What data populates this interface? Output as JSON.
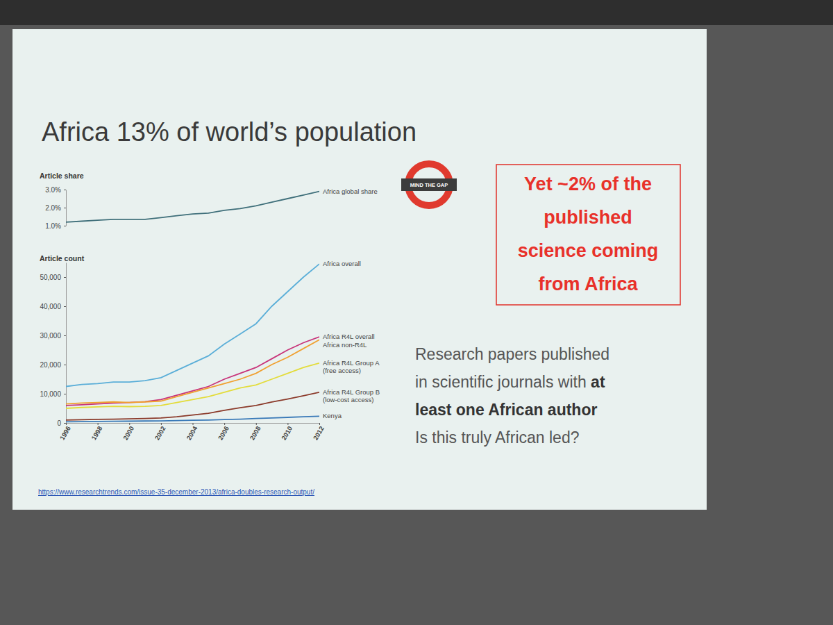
{
  "slide": {
    "title": "Africa 13% of world’s population",
    "logo_text": "MIND THE GAP",
    "callout": [
      "Yet ~2% of the",
      "published",
      "science coming",
      "from Africa"
    ],
    "note": [
      [
        {
          "text": "Research papers published"
        }
      ],
      [
        {
          "text": "in scientific journals with "
        },
        {
          "text": "at",
          "bold": true
        }
      ],
      [
        {
          "text": "least one African author",
          "bold": true
        }
      ],
      [
        {
          "text": "Is this truly African led?"
        }
      ]
    ],
    "source": "https://www.researchtrends.com/issue-35-december-2013/africa-doubles-research-output/"
  },
  "chart_data": [
    {
      "type": "line",
      "ylabel": "Article share",
      "x": [
        1996,
        1997,
        1998,
        1999,
        2000,
        2001,
        2002,
        2003,
        2004,
        2005,
        2006,
        2007,
        2008,
        2009,
        2010,
        2011,
        2012
      ],
      "xlim": [
        1996,
        2012
      ],
      "ylim": [
        1.0,
        3.0
      ],
      "yticks": [
        {
          "value": 1,
          "label": "1.0%"
        },
        {
          "value": 2,
          "label": "2.0%"
        },
        {
          "value": 3,
          "label": "3.0%"
        }
      ],
      "tick_labels": "y",
      "grid": false,
      "series": [
        {
          "name": "Africa global share",
          "color": "#3f6f7a",
          "values": [
            1.2,
            1.25,
            1.3,
            1.35,
            1.35,
            1.35,
            1.45,
            1.55,
            1.65,
            1.7,
            1.85,
            1.95,
            2.1,
            2.3,
            2.5,
            2.7,
            2.9
          ]
        }
      ]
    },
    {
      "type": "line",
      "ylabel": "Article count",
      "x": [
        1996,
        1997,
        1998,
        1999,
        2000,
        2001,
        2002,
        2003,
        2004,
        2005,
        2006,
        2007,
        2008,
        2009,
        2010,
        2011,
        2012
      ],
      "xlim": [
        1996,
        2012
      ],
      "xticks": [
        1996,
        1998,
        2000,
        2002,
        2004,
        2006,
        2008,
        2010,
        2012
      ],
      "ylim": [
        0,
        55000
      ],
      "yticks": [
        0,
        {
          "value": 10000,
          "label": "10,000"
        },
        {
          "value": 20000,
          "label": "20,000"
        },
        {
          "value": 30000,
          "label": "30,000"
        },
        {
          "value": 40000,
          "label": "40,000"
        },
        {
          "value": 50000,
          "label": "50,000"
        }
      ],
      "grid": false,
      "series": [
        {
          "name": "Africa overall",
          "color": "#5aaed8",
          "values": [
            12500,
            13200,
            13500,
            14000,
            14000,
            14500,
            15500,
            18000,
            20500,
            23000,
            27000,
            30500,
            34000,
            40000,
            45000,
            50000,
            54500
          ]
        },
        {
          "name": "Africa R4L overall",
          "color": "#c8347a",
          "values": [
            6000,
            6200,
            6500,
            6800,
            7000,
            7300,
            8000,
            9500,
            11000,
            12500,
            15000,
            17000,
            19000,
            22000,
            25000,
            27500,
            29500
          ]
        },
        {
          "name": "Africa non-R4L",
          "color": "#f0a030",
          "values": [
            6500,
            6800,
            7000,
            7200,
            7000,
            7200,
            7500,
            9000,
            10500,
            12000,
            13500,
            15000,
            17000,
            20000,
            22500,
            25500,
            28500
          ]
        },
        {
          "name": "Africa R4L Group A (free access)",
          "color": "#e3dc3a",
          "values": [
            5000,
            5300,
            5500,
            5700,
            5600,
            5700,
            6000,
            7000,
            8000,
            9000,
            10500,
            12000,
            13000,
            15000,
            17000,
            19000,
            20500
          ]
        },
        {
          "name": "Africa R4L Group B (low-cost access)",
          "color": "#8b3a2a",
          "values": [
            1000,
            1100,
            1200,
            1300,
            1400,
            1500,
            1700,
            2100,
            2700,
            3300,
            4300,
            5200,
            6000,
            7200,
            8200,
            9300,
            10500
          ]
        },
        {
          "name": "Kenya",
          "color": "#3a7ab8",
          "values": [
            400,
            450,
            500,
            550,
            600,
            650,
            700,
            800,
            900,
            1000,
            1150,
            1300,
            1500,
            1700,
            1900,
            2100,
            2300
          ]
        }
      ]
    }
  ]
}
